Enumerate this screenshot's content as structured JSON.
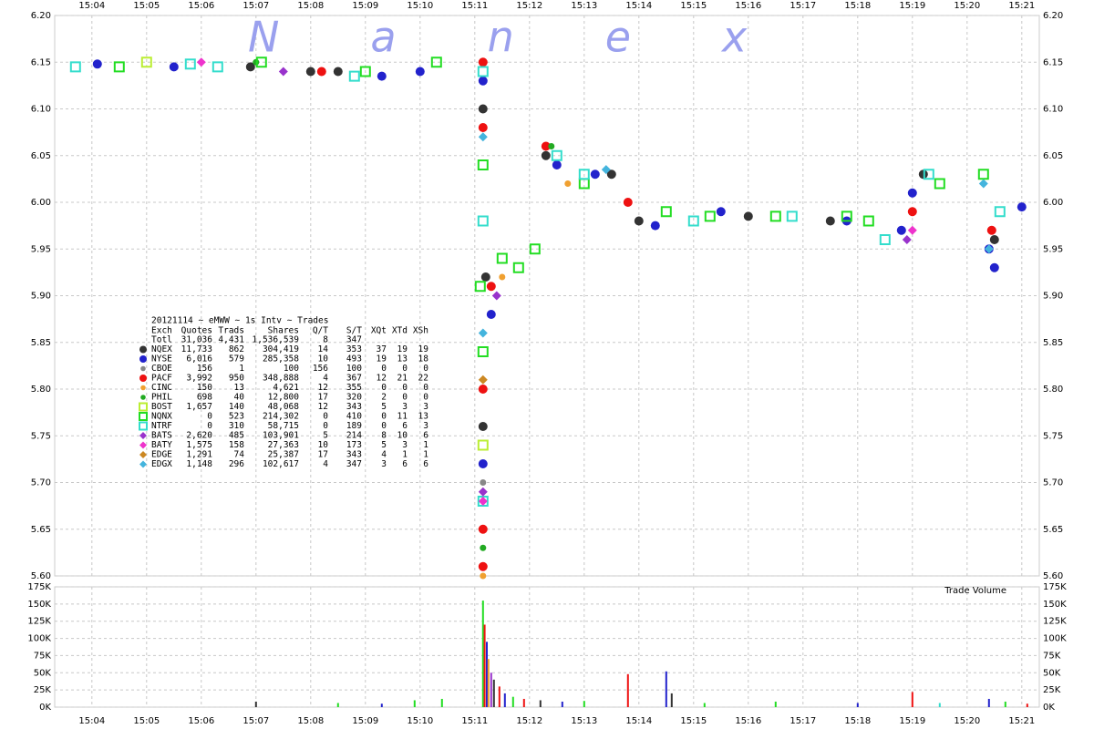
{
  "chart_data": [
    {
      "type": "scatter",
      "subtitle": "20121114 ~ eMWW ~ 1s Intv ~ Trades",
      "watermark": "Nanex",
      "xlim": [
        903.32,
        921.32
      ],
      "xticks": [
        {
          "value": 904,
          "label": "15:04"
        },
        {
          "value": 905,
          "label": "15:05"
        },
        {
          "value": 906,
          "label": "15:06"
        },
        {
          "value": 907,
          "label": "15:07"
        },
        {
          "value": 908,
          "label": "15:08"
        },
        {
          "value": 909,
          "label": "15:09"
        },
        {
          "value": 910,
          "label": "15:10"
        },
        {
          "value": 911,
          "label": "15:11"
        },
        {
          "value": 912,
          "label": "15:12"
        },
        {
          "value": 913,
          "label": "15:13"
        },
        {
          "value": 914,
          "label": "15:14"
        },
        {
          "value": 915,
          "label": "15:15"
        },
        {
          "value": 916,
          "label": "15:16"
        },
        {
          "value": 917,
          "label": "15:17"
        },
        {
          "value": 918,
          "label": "15:18"
        },
        {
          "value": 919,
          "label": "15:19"
        },
        {
          "value": 920,
          "label": "15:20"
        },
        {
          "value": 921,
          "label": "15:21"
        }
      ],
      "ylim": [
        5.6,
        6.2
      ],
      "yticks": [
        {
          "value": 5.6,
          "label": "5.60"
        },
        5.65,
        {
          "value": 5.7,
          "label": "5.70"
        },
        5.75,
        {
          "value": 5.8,
          "label": "5.80"
        },
        5.85,
        {
          "value": 5.9,
          "label": "5.90"
        },
        5.95,
        {
          "value": 6.0,
          "label": "6.00"
        },
        6.05,
        {
          "value": 6.1,
          "label": "6.10"
        },
        6.15,
        {
          "value": 6.2,
          "label": "6.20"
        }
      ],
      "grid": true,
      "legend_header": [
        "Exch",
        "Quotes",
        "Trads",
        "Shares",
        "Q/T",
        "S/T",
        "XQt",
        "XTd",
        "XSh"
      ],
      "total": {
        "name": "Totl",
        "stats": [
          "31,036",
          "4,431",
          "1,536,539",
          "8",
          "347"
        ]
      },
      "series": [
        {
          "name": "NQEX",
          "color": "#333333",
          "marker": "circle",
          "stats": [
            "11,733",
            "862",
            "304,419",
            "14",
            "353",
            "37",
            "19",
            "19"
          ],
          "x": [
            906.9,
            908.0,
            908.5,
            911.15,
            911.15,
            911.2,
            912.3,
            913.5,
            914.0,
            916.0,
            917.5,
            919.2,
            920.5
          ],
          "values": [
            6.145,
            6.14,
            6.14,
            6.1,
            5.76,
            5.92,
            6.05,
            6.03,
            5.98,
            5.985,
            5.98,
            6.03,
            5.96
          ]
        },
        {
          "name": "NYSE",
          "color": "#2222cc",
          "marker": "circle",
          "stats": [
            "6,016",
            "579",
            "285,358",
            "10",
            "493",
            "19",
            "13",
            "18"
          ],
          "x": [
            904.1,
            905.5,
            909.3,
            910.0,
            911.15,
            911.15,
            911.3,
            912.5,
            913.2,
            914.3,
            915.5,
            917.8,
            918.8,
            919.0,
            920.4,
            920.5,
            921.0
          ],
          "values": [
            6.148,
            6.145,
            6.135,
            6.14,
            6.13,
            5.72,
            5.88,
            6.04,
            6.03,
            5.975,
            5.99,
            5.98,
            5.97,
            6.01,
            5.95,
            5.93,
            5.995
          ]
        },
        {
          "name": "CBOE",
          "color": "#888888",
          "marker": "dot",
          "stats": [
            "156",
            "1",
            "100",
            "156",
            "100",
            "0",
            "0",
            "0"
          ],
          "x": [
            911.15
          ],
          "values": [
            5.7
          ]
        },
        {
          "name": "PACF",
          "color": "#ee1111",
          "marker": "circle",
          "stats": [
            "3,992",
            "950",
            "348,888",
            "4",
            "367",
            "12",
            "21",
            "22"
          ],
          "x": [
            908.2,
            911.15,
            911.15,
            911.15,
            911.15,
            911.15,
            911.3,
            912.3,
            913.8,
            919.0,
            920.45
          ],
          "values": [
            6.14,
            6.15,
            6.08,
            5.8,
            5.65,
            5.61,
            5.91,
            6.06,
            6.0,
            5.99,
            5.97
          ]
        },
        {
          "name": "CINC",
          "color": "#f0a030",
          "marker": "dot",
          "stats": [
            "150",
            "13",
            "4,621",
            "12",
            "355",
            "0",
            "0",
            "0"
          ],
          "x": [
            911.15,
            911.5,
            912.7
          ],
          "values": [
            5.6,
            5.92,
            6.02
          ]
        },
        {
          "name": "PHIL",
          "color": "#22aa22",
          "marker": "dot",
          "stats": [
            "698",
            "40",
            "12,800",
            "17",
            "320",
            "2",
            "0",
            "0"
          ],
          "x": [
            907.0,
            911.15,
            912.4
          ],
          "values": [
            6.15,
            5.63,
            6.06
          ]
        },
        {
          "name": "BOST",
          "color": "#bbee33",
          "marker": "square",
          "stats": [
            "1,657",
            "140",
            "48,068",
            "12",
            "343",
            "5",
            "3",
            "3"
          ],
          "x": [
            905.0,
            911.15
          ],
          "values": [
            6.15,
            5.74
          ]
        },
        {
          "name": "NQNX",
          "color": "#22dd22",
          "marker": "square",
          "stats": [
            "0",
            "523",
            "214,302",
            "0",
            "410",
            "0",
            "11",
            "13"
          ],
          "x": [
            904.5,
            907.1,
            909.0,
            910.3,
            911.1,
            911.15,
            911.15,
            911.5,
            911.8,
            912.1,
            913.0,
            914.5,
            915.3,
            916.5,
            917.8,
            918.2,
            919.5,
            920.3
          ],
          "values": [
            6.145,
            6.15,
            6.14,
            6.15,
            5.91,
            6.04,
            5.84,
            5.94,
            5.93,
            5.95,
            6.02,
            5.99,
            5.985,
            5.985,
            5.985,
            5.98,
            6.02,
            6.03
          ]
        },
        {
          "name": "NTRF",
          "color": "#33ddcc",
          "marker": "square",
          "stats": [
            "0",
            "310",
            "58,715",
            "0",
            "189",
            "0",
            "6",
            "3"
          ],
          "x": [
            903.7,
            905.8,
            906.3,
            908.8,
            911.15,
            911.15,
            911.15,
            912.5,
            913.0,
            915.0,
            916.8,
            918.5,
            919.3,
            920.6
          ],
          "values": [
            6.145,
            6.148,
            6.145,
            6.135,
            6.14,
            5.98,
            5.68,
            6.05,
            6.03,
            5.98,
            5.985,
            5.96,
            6.03,
            5.99
          ]
        },
        {
          "name": "BATS",
          "color": "#9933cc",
          "marker": "diamond",
          "stats": [
            "2,620",
            "485",
            "103,901",
            "5",
            "214",
            "8",
            "10",
            "6"
          ],
          "x": [
            907.5,
            911.15,
            911.4,
            918.9
          ],
          "values": [
            6.14,
            5.69,
            5.9,
            5.96
          ]
        },
        {
          "name": "BATY",
          "color": "#ee33cc",
          "marker": "diamond",
          "stats": [
            "1,575",
            "158",
            "27,363",
            "10",
            "173",
            "5",
            "3",
            "1"
          ],
          "x": [
            906.0,
            911.15,
            919.0
          ],
          "values": [
            6.15,
            5.68,
            5.97
          ]
        },
        {
          "name": "EDGE",
          "color": "#cc8822",
          "marker": "diamond",
          "stats": [
            "1,291",
            "74",
            "25,387",
            "17",
            "343",
            "4",
            "1",
            "1"
          ],
          "x": [
            911.15
          ],
          "values": [
            5.81
          ]
        },
        {
          "name": "EDGX",
          "color": "#44b4dd",
          "marker": "diamond",
          "stats": [
            "1,148",
            "296",
            "102,617",
            "4",
            "347",
            "3",
            "6",
            "6"
          ],
          "x": [
            911.15,
            911.15,
            913.4,
            920.4,
            920.3
          ],
          "values": [
            6.07,
            5.86,
            6.035,
            5.95,
            6.02
          ]
        }
      ]
    },
    {
      "type": "bar",
      "annotation": "Trade Volume",
      "xlim": [
        903.32,
        921.32
      ],
      "xticks": [
        {
          "value": 904,
          "label": "15:04"
        },
        {
          "value": 905,
          "label": "15:05"
        },
        {
          "value": 906,
          "label": "15:06"
        },
        {
          "value": 907,
          "label": "15:07"
        },
        {
          "value": 908,
          "label": "15:08"
        },
        {
          "value": 909,
          "label": "15:09"
        },
        {
          "value": 910,
          "label": "15:10"
        },
        {
          "value": 911,
          "label": "15:11"
        },
        {
          "value": 912,
          "label": "15:12"
        },
        {
          "value": 913,
          "label": "15:13"
        },
        {
          "value": 914,
          "label": "15:14"
        },
        {
          "value": 915,
          "label": "15:15"
        },
        {
          "value": 916,
          "label": "15:16"
        },
        {
          "value": 917,
          "label": "15:17"
        },
        {
          "value": 918,
          "label": "15:18"
        },
        {
          "value": 919,
          "label": "15:19"
        },
        {
          "value": 920,
          "label": "15:20"
        },
        {
          "value": 921,
          "label": "15:21"
        }
      ],
      "ylim": [
        0,
        175000
      ],
      "yticks": [
        {
          "value": 0,
          "label": "0K"
        },
        {
          "value": 25000,
          "label": "25K"
        },
        {
          "value": 50000,
          "label": "50K"
        },
        {
          "value": 75000,
          "label": "75K"
        },
        {
          "value": 100000,
          "label": "100K"
        },
        {
          "value": 125000,
          "label": "125K"
        },
        {
          "value": 150000,
          "label": "150K"
        },
        {
          "value": 175000,
          "label": "175K"
        }
      ],
      "grid": true,
      "x": [
        907.0,
        908.5,
        909.3,
        909.9,
        910.4,
        911.15,
        911.18,
        911.22,
        911.25,
        911.3,
        911.35,
        911.45,
        911.55,
        911.7,
        911.9,
        912.2,
        912.6,
        913.0,
        913.8,
        914.5,
        914.6,
        915.2,
        916.5,
        918.0,
        919.0,
        919.5,
        920.4,
        920.7,
        921.1
      ],
      "values": [
        8000,
        6000,
        5000,
        10000,
        12000,
        155000,
        120000,
        95000,
        70000,
        50000,
        40000,
        30000,
        20000,
        15000,
        12000,
        10000,
        8000,
        9000,
        48000,
        52000,
        20000,
        6000,
        8000,
        6000,
        22000,
        6000,
        12000,
        8000,
        5000
      ],
      "colors": [
        "#333333",
        "#22dd22",
        "#2222cc",
        "#22dd22",
        "#22dd22",
        "#22dd22",
        "#ee1111",
        "#2222cc",
        "#f0a030",
        "#9933cc",
        "#333333",
        "#ee1111",
        "#2222cc",
        "#22dd22",
        "#ee1111",
        "#333333",
        "#2222cc",
        "#22dd22",
        "#ee1111",
        "#2222cc",
        "#333333",
        "#22dd22",
        "#22dd22",
        "#2222cc",
        "#ee1111",
        "#33ddcc",
        "#2222cc",
        "#22dd22",
        "#ee1111"
      ]
    }
  ]
}
